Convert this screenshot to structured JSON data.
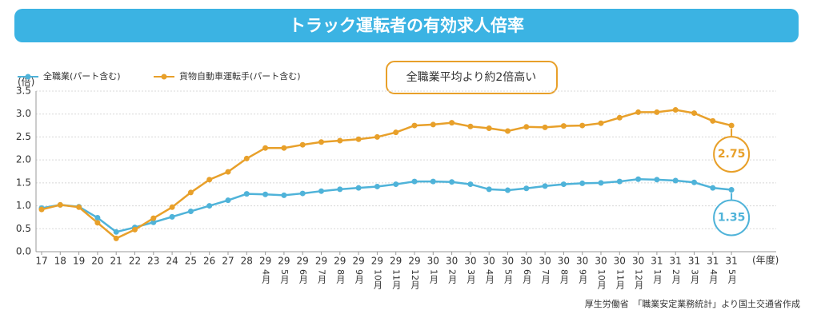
{
  "chart_data": {
    "type": "line",
    "title": "トラック運転者の有効求人倍率",
    "y_unit": "(倍)",
    "x_unit": "(年度)",
    "annotation": "全職業平均より約2倍高い",
    "source": "厚生労働省　「職業安定業務統計」より国土交通省作成",
    "categories": [
      "17",
      "18",
      "19",
      "20",
      "21",
      "22",
      "23",
      "24",
      "25",
      "26",
      "27",
      "28",
      "29",
      "29",
      "29",
      "29",
      "29",
      "29",
      "29",
      "29",
      "29",
      "30",
      "30",
      "30",
      "30",
      "30",
      "30",
      "30",
      "30",
      "30",
      "30",
      "30",
      "30",
      "31",
      "31",
      "31",
      "31",
      "31"
    ],
    "month_labels": [
      null,
      null,
      null,
      null,
      null,
      null,
      null,
      null,
      null,
      null,
      null,
      null,
      "4月",
      "5月",
      "6月",
      "7月",
      "8月",
      "9月",
      "10月",
      "11月",
      "12月",
      "1月",
      "2月",
      "3月",
      "4月",
      "5月",
      "6月",
      "7月",
      "8月",
      "9月",
      "10月",
      "11月",
      "12月",
      "1月",
      "2月",
      "3月",
      "4月",
      "5月"
    ],
    "series": [
      {
        "name": "全職業(パート含む)",
        "color": "#4fb3d9",
        "values": [
          0.95,
          1.02,
          0.98,
          0.74,
          0.43,
          0.53,
          0.64,
          0.76,
          0.88,
          1.0,
          1.12,
          1.26,
          1.25,
          1.23,
          1.27,
          1.32,
          1.36,
          1.39,
          1.42,
          1.47,
          1.53,
          1.53,
          1.52,
          1.47,
          1.36,
          1.34,
          1.38,
          1.43,
          1.47,
          1.49,
          1.5,
          1.53,
          1.58,
          1.57,
          1.55,
          1.51,
          1.39,
          1.35
        ]
      },
      {
        "name": "貨物自動車運転手(パート含む)",
        "color": "#e8a02a",
        "values": [
          0.92,
          1.02,
          0.97,
          0.63,
          0.29,
          0.48,
          0.73,
          0.97,
          1.29,
          1.57,
          1.74,
          2.03,
          2.26,
          2.26,
          2.33,
          2.39,
          2.42,
          2.45,
          2.5,
          2.6,
          2.75,
          2.77,
          2.81,
          2.73,
          2.69,
          2.63,
          2.72,
          2.71,
          2.74,
          2.75,
          2.8,
          2.92,
          3.04,
          3.04,
          3.09,
          3.02,
          2.85,
          2.75
        ]
      }
    ],
    "ylim": [
      0,
      3.5
    ],
    "yticks": [
      {
        "value": 0,
        "label": "0.0"
      },
      0.5,
      {
        "value": 1,
        "label": "1.0"
      },
      1.5,
      {
        "value": 2,
        "label": "2.0"
      },
      2.5,
      {
        "value": 3,
        "label": "3.0"
      },
      3.5
    ],
    "grid": true
  }
}
